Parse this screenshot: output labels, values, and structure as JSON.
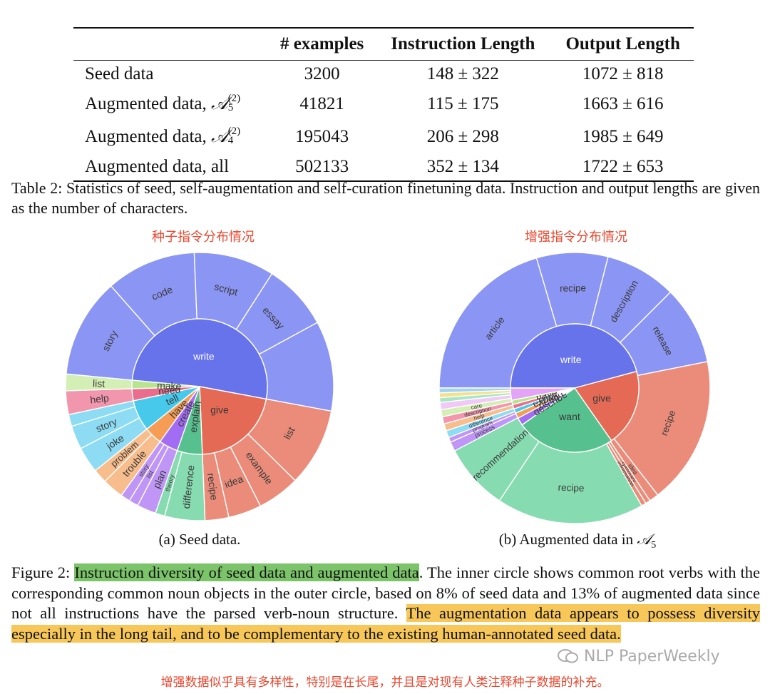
{
  "table": {
    "headers": [
      "",
      "# examples",
      "Instruction Length",
      "Output Length"
    ],
    "rows": [
      {
        "label": "Seed data",
        "sup": "",
        "sub": "",
        "examples": "3200",
        "instruction": "148 ± 322",
        "output": "1072 ± 818"
      },
      {
        "label": "Augmented data, ",
        "math": "𝒜",
        "sup": "(2)",
        "sub": "5",
        "examples": "41821",
        "instruction": "115 ± 175",
        "output": "1663 ± 616"
      },
      {
        "label": "Augmented data, ",
        "math": "𝒜",
        "sup": "(2)",
        "sub": "4",
        "examples": "195043",
        "instruction": "206 ± 298",
        "output": "1985 ± 649"
      },
      {
        "label": "Augmented data, all",
        "sup": "",
        "sub": "",
        "examples": "502133",
        "instruction": "352 ± 134",
        "output": "1722 ± 653"
      }
    ],
    "caption": "Table 2: Statistics of seed, self-augmentation and self-curation finetuning data. Instruction and output lengths are given as the number of characters."
  },
  "figure": {
    "left_title_cn": "种子指令分布情况",
    "right_title_cn": "增强指令分布情况",
    "left_subcaption": "(a) Seed data.",
    "right_subcaption_prefix": "(b) Augmented data in ",
    "right_subcaption_math": "𝒜",
    "right_subcaption_sub": "5",
    "caption_label": "Figure 2: ",
    "caption_highlight": "Instruction diversity of seed data and augmented data",
    "caption_mid": ". The inner circle shows common root verbs with the corresponding common noun objects in the outer circle, based on 8% of seed data and 13% of augmented data since not all instructions have the parsed verb-noun structure. ",
    "caption_highlight2": "The augmentation data appears to possess diversity especially in the long tail, and to be complementary to the existing human-annotated seed data.",
    "bottom_cn": "增强数据似乎具有多样性，特别是在长尾，并且是对现有人类注释种子数据的补充。",
    "watermark": "NLP PaperWeekly"
  },
  "chart_data": [
    {
      "type": "sunburst",
      "title": "种子指令分布情况",
      "inner": [
        {
          "name": "write",
          "value": 180,
          "color": "#6673ea"
        },
        {
          "name": "give",
          "value": 75,
          "color": "#e46a55"
        },
        {
          "name": "explain",
          "value": 21,
          "color": "#57c08f"
        },
        {
          "name": "create",
          "value": 16,
          "color": "#a26df2"
        },
        {
          "name": "have",
          "value": 15,
          "color": "#f59c55"
        },
        {
          "name": "tell",
          "value": 26,
          "color": "#47c9ec"
        },
        {
          "name": "need",
          "value": 10,
          "color": "#ea6d8e"
        },
        {
          "name": "make",
          "value": 7,
          "color": "#b7e58f"
        }
      ],
      "outer": [
        {
          "name": "story",
          "value": 42,
          "color": "#8b95f4"
        },
        {
          "name": "code",
          "value": 38,
          "color": "#8b95f4"
        },
        {
          "name": "script",
          "value": 34,
          "color": "#8b95f4"
        },
        {
          "name": "essay",
          "value": 28,
          "color": "#8b95f4"
        },
        {
          "name": "",
          "value": 38,
          "color": "#8b95f4"
        },
        {
          "name": "list",
          "value": 33,
          "color": "#eb8c7a"
        },
        {
          "name": "example",
          "value": 18,
          "color": "#eb8c7a"
        },
        {
          "name": "idea",
          "value": 14,
          "color": "#eb8c7a"
        },
        {
          "name": "recipe",
          "value": 10,
          "color": "#eb8c7a"
        },
        {
          "name": "difference",
          "value": 17,
          "color": "#86dbb0"
        },
        {
          "name": "theory",
          "value": 4,
          "color": "#86dbb0"
        },
        {
          "name": "plan",
          "value": 8,
          "color": "#bf95f6"
        },
        {
          "name": "list",
          "value": 4,
          "color": "#bf95f6"
        },
        {
          "name": "story",
          "value": 4,
          "color": "#bf95f6"
        },
        {
          "name": "trouble",
          "value": 9,
          "color": "#f8bd8c"
        },
        {
          "name": "problem",
          "value": 6,
          "color": "#f8bd8c"
        },
        {
          "name": "joke",
          "value": 11,
          "color": "#8ddcf4"
        },
        {
          "name": "story",
          "value": 10,
          "color": "#8ddcf4"
        },
        {
          "name": "",
          "value": 5,
          "color": "#8ddcf4"
        },
        {
          "name": "help",
          "value": 10,
          "color": "#f296ae"
        },
        {
          "name": "list",
          "value": 7,
          "color": "#d4efb6"
        }
      ]
    },
    {
      "type": "sunburst",
      "title": "增强指令分布情况",
      "inner": [
        {
          "name": "write",
          "value": 165,
          "color": "#6673ea"
        },
        {
          "name": "give",
          "value": 70,
          "color": "#e46a55"
        },
        {
          "name": "want",
          "value": 90,
          "color": "#57c08f"
        },
        {
          "name": "describe",
          "value": 7,
          "color": "#a26df2"
        },
        {
          "name": "need",
          "value": 5,
          "color": "#f59c55"
        },
        {
          "name": "explain",
          "value": 4,
          "color": "#47c9ec"
        },
        {
          "name": "plan",
          "value": 4,
          "color": "#ea6d8e"
        },
        {
          "name": "have",
          "value": 4,
          "color": "#b7e58f"
        },
        {
          "name": "",
          "value": 11,
          "color": "#e3a4f7"
        }
      ],
      "outer": [
        {
          "name": "article",
          "value": 72,
          "color": "#8b95f4"
        },
        {
          "name": "recipe",
          "value": 30,
          "color": "#8b95f4"
        },
        {
          "name": "description",
          "value": 30,
          "color": "#8b95f4"
        },
        {
          "name": "release",
          "value": 33,
          "color": "#8b95f4"
        },
        {
          "name": "recipe",
          "value": 62,
          "color": "#eb8c7a"
        },
        {
          "name": "idea",
          "value": 4,
          "color": "#eb8c7a"
        },
        {
          "name": "summary",
          "value": 2,
          "color": "#eb8c7a"
        },
        {
          "name": "information",
          "value": 2,
          "color": "#eb8c7a"
        },
        {
          "name": "recipe",
          "value": 62,
          "color": "#86dbb0"
        },
        {
          "name": "recommendation",
          "value": 28,
          "color": "#86dbb0"
        },
        {
          "name": "process",
          "value": 4,
          "color": "#bf95f6"
        },
        {
          "name": "program",
          "value": 2,
          "color": "#bf95f6"
        },
        {
          "name": "difference",
          "value": 3,
          "color": "#8ddcf4"
        },
        {
          "name": "help",
          "value": 3,
          "color": "#f8bd8c"
        },
        {
          "name": "description",
          "value": 3,
          "color": "#f296ae"
        },
        {
          "name": "care",
          "value": 3,
          "color": "#d4efb6"
        },
        {
          "name": "",
          "value": 3,
          "color": "#f0c9f7"
        },
        {
          "name": "",
          "value": 2,
          "color": "#a8e6c4"
        },
        {
          "name": "",
          "value": 2,
          "color": "#f5e08e"
        },
        {
          "name": "",
          "value": 2,
          "color": "#9fd4f2"
        }
      ]
    }
  ]
}
